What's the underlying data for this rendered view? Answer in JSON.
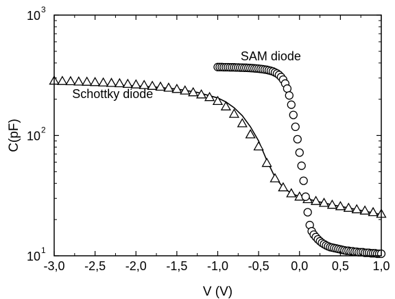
{
  "chart_data": {
    "type": "scatter",
    "xlabel": "V (V)",
    "ylabel": "C(pF)",
    "xlim": [
      -3.0,
      1.0
    ],
    "ylim": [
      10,
      1000
    ],
    "yscale": "log",
    "x_ticks": [
      -3.0,
      -2.5,
      -2.0,
      -1.5,
      -1.0,
      -0.5,
      0.0,
      0.5,
      1.0
    ],
    "x_tick_labels": [
      "-3,0",
      "-2,5",
      "-2,0",
      "-1,5",
      "-1,0",
      "-0,5",
      "0,0",
      "0,5",
      "1,0"
    ],
    "y_ticks": [
      {
        "value": 10,
        "base": "10",
        "exp": "1"
      },
      {
        "value": 100,
        "base": "10",
        "exp": "2"
      },
      {
        "value": 1000,
        "base": "10",
        "exp": "3"
      }
    ],
    "grid": false,
    "annotations": [
      {
        "text": "SAM diode",
        "x": -0.72,
        "y": 420
      },
      {
        "text": "Schottky diode",
        "x": -2.78,
        "y": 205
      }
    ],
    "series": [
      {
        "marker": "triangle",
        "color": "#000000",
        "x": [
          -3.0,
          -2.9,
          -2.8,
          -2.7,
          -2.6,
          -2.5,
          -2.4,
          -2.3,
          -2.2,
          -2.1,
          -2.0,
          -1.9,
          -1.8,
          -1.7,
          -1.6,
          -1.5,
          -1.4,
          -1.3,
          -1.2,
          -1.1,
          -1.0,
          -0.9,
          -0.8,
          -0.7,
          -0.6,
          -0.5,
          -0.4,
          -0.3,
          -0.2,
          -0.1,
          0.0,
          0.1,
          0.2,
          0.3,
          0.4,
          0.5,
          0.6,
          0.7,
          0.8,
          0.9,
          1.0
        ],
        "y": [
          285,
          283,
          282,
          280,
          279,
          277,
          275,
          273,
          271,
          268,
          265,
          262,
          258,
          254,
          249,
          243,
          236,
          228,
          219,
          208,
          193,
          174,
          151,
          126,
          102,
          81,
          59,
          44,
          37,
          33,
          31,
          29.5,
          28.5,
          27.5,
          26.5,
          25.8,
          25,
          24.3,
          23.7,
          23,
          22.3
        ]
      },
      {
        "marker": "line",
        "color": "#000000",
        "x": [
          -3.0,
          -2.75,
          -2.5,
          -2.25,
          -2.0,
          -1.75,
          -1.5,
          -1.25,
          -1.0,
          -0.9,
          -0.8,
          -0.7,
          -0.6,
          -0.5,
          -0.4,
          -0.3,
          -0.2,
          -0.1,
          0.0,
          0.2,
          0.4,
          0.6,
          0.8,
          1.0
        ],
        "y": [
          270,
          268,
          265,
          262,
          258,
          252,
          243,
          228,
          205,
          190,
          170,
          146,
          118,
          90,
          62,
          45,
          37,
          33,
          31,
          28.5,
          26.5,
          25,
          23.5,
          22
        ]
      },
      {
        "marker": "circle",
        "color": "#000000",
        "x": [
          -1.0,
          -0.975,
          -0.95,
          -0.925,
          -0.9,
          -0.875,
          -0.85,
          -0.825,
          -0.8,
          -0.775,
          -0.75,
          -0.725,
          -0.7,
          -0.675,
          -0.65,
          -0.625,
          -0.6,
          -0.575,
          -0.55,
          -0.525,
          -0.5,
          -0.475,
          -0.45,
          -0.425,
          -0.4,
          -0.375,
          -0.35,
          -0.325,
          -0.3,
          -0.275,
          -0.25,
          -0.225,
          -0.2,
          -0.175,
          -0.15,
          -0.125,
          -0.1,
          -0.075,
          -0.05,
          -0.025,
          0.0,
          0.025,
          0.05,
          0.075,
          0.1,
          0.125,
          0.15,
          0.175,
          0.2,
          0.225,
          0.25,
          0.275,
          0.3,
          0.325,
          0.35,
          0.375,
          0.4,
          0.425,
          0.45,
          0.475,
          0.5,
          0.525,
          0.55,
          0.575,
          0.6,
          0.625,
          0.65,
          0.675,
          0.7,
          0.725,
          0.75,
          0.775,
          0.8,
          0.825,
          0.85,
          0.875,
          0.9,
          0.925,
          0.95,
          0.975,
          1.0
        ],
        "y": [
          370,
          370,
          370,
          369,
          369,
          369,
          368,
          368,
          368,
          367,
          367,
          366,
          366,
          365,
          365,
          364,
          363,
          362,
          361,
          360,
          359,
          357,
          355,
          353,
          351,
          348,
          344,
          340,
          334,
          327,
          318,
          306,
          291,
          270,
          245,
          215,
          180,
          148,
          118,
          93,
          72,
          56,
          42,
          31,
          23,
          18,
          16,
          15,
          14.3,
          13.7,
          13.2,
          12.8,
          12.5,
          12.2,
          12.0,
          11.8,
          11.7,
          11.6,
          11.5,
          11.4,
          11.3,
          11.2,
          11.1,
          11.0,
          11.0,
          10.9,
          10.9,
          10.8,
          10.8,
          10.7,
          10.7,
          10.7,
          10.6,
          10.6,
          10.6,
          10.5,
          10.5,
          10.5,
          10.4,
          10.4,
          10.4
        ]
      }
    ]
  }
}
